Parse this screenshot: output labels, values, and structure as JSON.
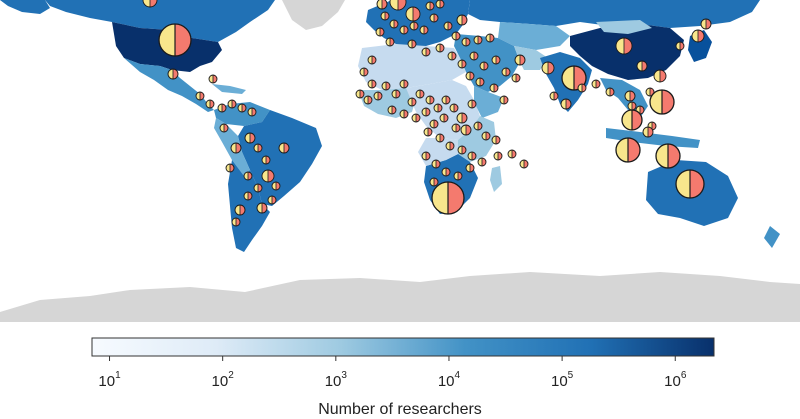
{
  "map": {
    "type": "choropleth-with-pie-markers",
    "land_color": "#d6d6d6",
    "ocean_color": "#ffffff",
    "marker_colors": {
      "half_a": "#f8e68c",
      "half_b": "#f47a6e",
      "outline": "#1a1a1a"
    },
    "choropleth_scale": [
      "#f7fbff",
      "#deebf7",
      "#c6dbef",
      "#9ecae1",
      "#6baed6",
      "#4292c6",
      "#2171b5",
      "#08519c",
      "#08306b"
    ]
  },
  "legend": {
    "title": "Number of researchers",
    "scale": "log",
    "range": [
      7,
      2200000
    ],
    "ticks": [
      {
        "base": "10",
        "exp": "1",
        "value": 10
      },
      {
        "base": "10",
        "exp": "2",
        "value": 100
      },
      {
        "base": "10",
        "exp": "3",
        "value": 1000
      },
      {
        "base": "10",
        "exp": "4",
        "value": 10000
      },
      {
        "base": "10",
        "exp": "5",
        "value": 100000
      },
      {
        "base": "10",
        "exp": "6",
        "value": 1000000
      }
    ]
  }
}
